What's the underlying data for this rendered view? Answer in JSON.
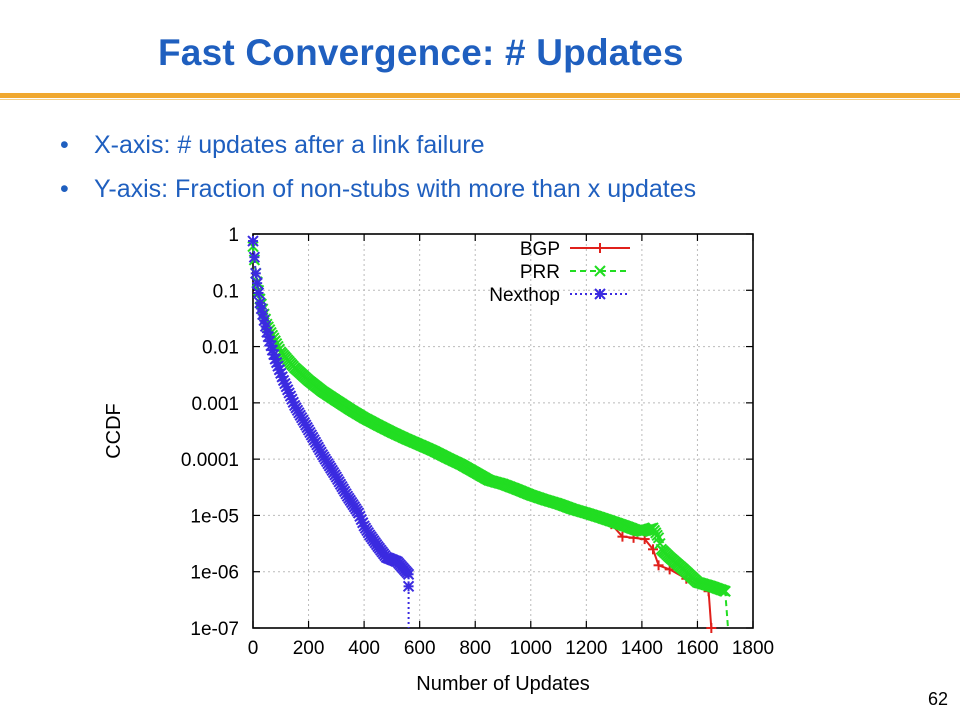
{
  "slide": {
    "title": "Fast Convergence: # Updates",
    "bullets": [
      "X-axis: # updates after a link failure",
      "Y-axis: Fraction of non-stubs with more than x updates"
    ],
    "bullet_glyph": "•",
    "page_number": "62"
  },
  "colors": {
    "title": "#1f5fbf",
    "accent_rule": "#f0a830",
    "bgp": "#e0201b",
    "prr": "#22dd22",
    "nexthop": "#3b2be0"
  },
  "chart_data": {
    "type": "line",
    "title": "",
    "xlabel": "Number of Updates",
    "ylabel": "CCDF",
    "xlim": [
      0,
      1800
    ],
    "ylim": [
      1e-07,
      1
    ],
    "yscale": "log",
    "x_ticks": [
      "0",
      "200",
      "400",
      "600",
      "800",
      "1000",
      "1200",
      "1400",
      "1600",
      "1800"
    ],
    "y_ticks": [
      "1",
      "0.1",
      "0.01",
      "0.001",
      "0.0001",
      "1e-05",
      "1e-06",
      "1e-07"
    ],
    "grid": true,
    "legend_position": "top-right",
    "series": [
      {
        "name": "BGP",
        "color": "#e0201b",
        "line": "solid",
        "marker": "+",
        "points": [
          [
            1250,
            9.8e-06
          ],
          [
            1290,
            7e-06
          ],
          [
            1330,
            4.2e-06
          ],
          [
            1370,
            4e-06
          ],
          [
            1410,
            3.8e-06
          ],
          [
            1440,
            2.5e-06
          ],
          [
            1460,
            1.3e-06
          ],
          [
            1500,
            1.1e-06
          ],
          [
            1560,
            7.5e-07
          ],
          [
            1640,
            4.5e-07
          ],
          [
            1650,
            1e-07
          ]
        ]
      },
      {
        "name": "PRR",
        "color": "#22dd22",
        "line": "dashed",
        "marker": "x",
        "points": [
          [
            0,
            0.6
          ],
          [
            10,
            0.2
          ],
          [
            25,
            0.07
          ],
          [
            50,
            0.025
          ],
          [
            100,
            0.008
          ],
          [
            150,
            0.0042
          ],
          [
            200,
            0.0025
          ],
          [
            250,
            0.0016
          ],
          [
            300,
            0.0011
          ],
          [
            350,
            0.00076
          ],
          [
            400,
            0.00054
          ],
          [
            450,
            0.0004
          ],
          [
            500,
            0.0003
          ],
          [
            550,
            0.00023
          ],
          [
            600,
            0.00018
          ],
          [
            650,
            0.00014
          ],
          [
            700,
            0.000105
          ],
          [
            750,
            8e-05
          ],
          [
            800,
            5.8e-05
          ],
          [
            850,
            4.2e-05
          ],
          [
            900,
            3.6e-05
          ],
          [
            950,
            2.9e-05
          ],
          [
            1000,
            2.3e-05
          ],
          [
            1050,
            1.9e-05
          ],
          [
            1100,
            1.6e-05
          ],
          [
            1150,
            1.3e-05
          ],
          [
            1200,
            1.1e-05
          ],
          [
            1250,
            9.2e-06
          ],
          [
            1300,
            7.6e-06
          ],
          [
            1340,
            6.5e-06
          ],
          [
            1380,
            5.5e-06
          ],
          [
            1400,
            5.2e-06
          ],
          [
            1440,
            6e-06
          ],
          [
            1460,
            4e-06
          ],
          [
            1470,
            2.5e-06
          ],
          [
            1500,
            1.8e-06
          ],
          [
            1550,
            1.1e-06
          ],
          [
            1600,
            6.5e-07
          ],
          [
            1650,
            5.5e-07
          ],
          [
            1700,
            4.5e-07
          ],
          [
            1710,
            1e-07
          ]
        ]
      },
      {
        "name": "Nexthop",
        "color": "#3b2be0",
        "line": "dotted",
        "marker": "*",
        "points": [
          [
            0,
            0.75
          ],
          [
            10,
            0.2
          ],
          [
            25,
            0.06
          ],
          [
            50,
            0.018
          ],
          [
            80,
            0.006
          ],
          [
            110,
            0.0025
          ],
          [
            150,
            0.0009
          ],
          [
            200,
            0.00033
          ],
          [
            250,
            0.00012
          ],
          [
            300,
            4.8e-05
          ],
          [
            340,
            2.2e-05
          ],
          [
            380,
            1.1e-05
          ],
          [
            400,
            6.5e-06
          ],
          [
            420,
            4.5e-06
          ],
          [
            450,
            2.8e-06
          ],
          [
            480,
            1.8e-06
          ],
          [
            520,
            1.5e-06
          ],
          [
            560,
            9e-07
          ],
          [
            560,
            5.5e-07
          ],
          [
            560,
            1e-07
          ]
        ]
      }
    ]
  }
}
